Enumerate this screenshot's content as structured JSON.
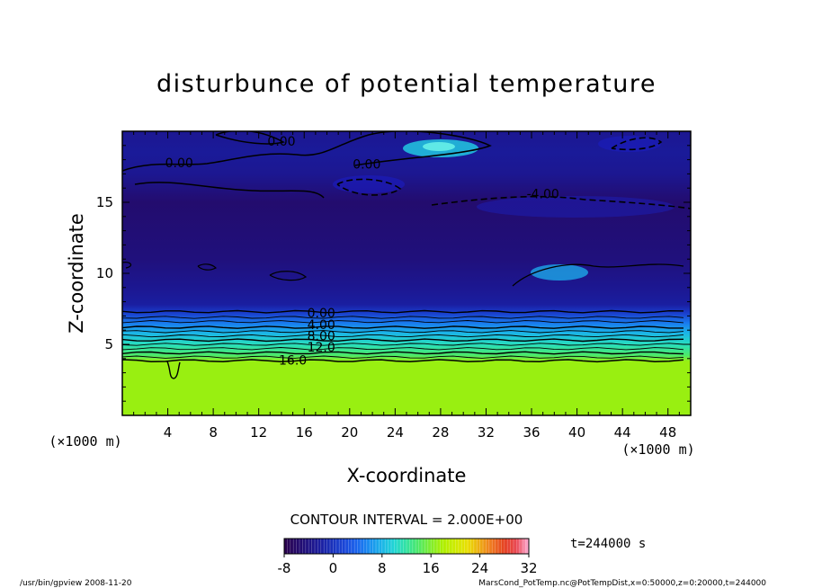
{
  "chart_data": {
    "type": "heatmap",
    "title": "disturbunce of potential temperature",
    "xlabel": "X-coordinate",
    "ylabel": "Z-coordinate",
    "x_unit": "(×1000 m)",
    "y_unit": "(×1000 m)",
    "xlim": [
      0,
      50
    ],
    "ylim": [
      0,
      20
    ],
    "x_ticks": [
      4,
      8,
      12,
      16,
      20,
      24,
      28,
      32,
      36,
      40,
      44,
      48
    ],
    "y_ticks": [
      5,
      10,
      15
    ],
    "grid": false,
    "contour_interval_label": "CONTOUR INTERVAL = 2.000E+00",
    "time_label": "t=244000 s",
    "colorbar": {
      "min": -8,
      "max": 32,
      "ticks": [
        -8,
        0,
        8,
        16,
        24,
        32
      ]
    },
    "contour_labels": [
      {
        "text": "0.00",
        "x": 14,
        "y": 19.3
      },
      {
        "text": "0.00",
        "x": 5,
        "y": 17.8
      },
      {
        "text": "0.00",
        "x": 21.5,
        "y": 17.7
      },
      {
        "text": "-4.00",
        "x": 37,
        "y": 15.6
      },
      {
        "text": "0.00",
        "x": 17.5,
        "y": 7.2
      },
      {
        "text": "4.00",
        "x": 17.5,
        "y": 6.4
      },
      {
        "text": "8.00",
        "x": 17.5,
        "y": 5.6
      },
      {
        "text": "12.0",
        "x": 17.5,
        "y": 4.8
      },
      {
        "text": "16.0",
        "x": 15,
        "y": 3.9
      }
    ],
    "field_profile": [
      {
        "z": 0,
        "value": 17
      },
      {
        "z": 3.8,
        "value": 17
      },
      {
        "z": 4.2,
        "value": 14
      },
      {
        "z": 5.0,
        "value": 11
      },
      {
        "z": 5.8,
        "value": 8
      },
      {
        "z": 6.5,
        "value": 5
      },
      {
        "z": 7.2,
        "value": 1
      },
      {
        "z": 7.8,
        "value": -2
      },
      {
        "z": 9.0,
        "value": -3
      },
      {
        "z": 11.0,
        "value": -4.5
      },
      {
        "z": 13.0,
        "value": -5
      },
      {
        "z": 15.0,
        "value": -5.5
      },
      {
        "z": 17.0,
        "value": -3
      },
      {
        "z": 18.5,
        "value": -2.5
      },
      {
        "z": 20.0,
        "value": -3
      }
    ]
  },
  "footer": {
    "left": "/usr/bin/gpview  2008-11-20",
    "right": "MarsCond_PotTemp.nc@PotTempDist,x=0:50000,z=0:20000,t=244000"
  }
}
